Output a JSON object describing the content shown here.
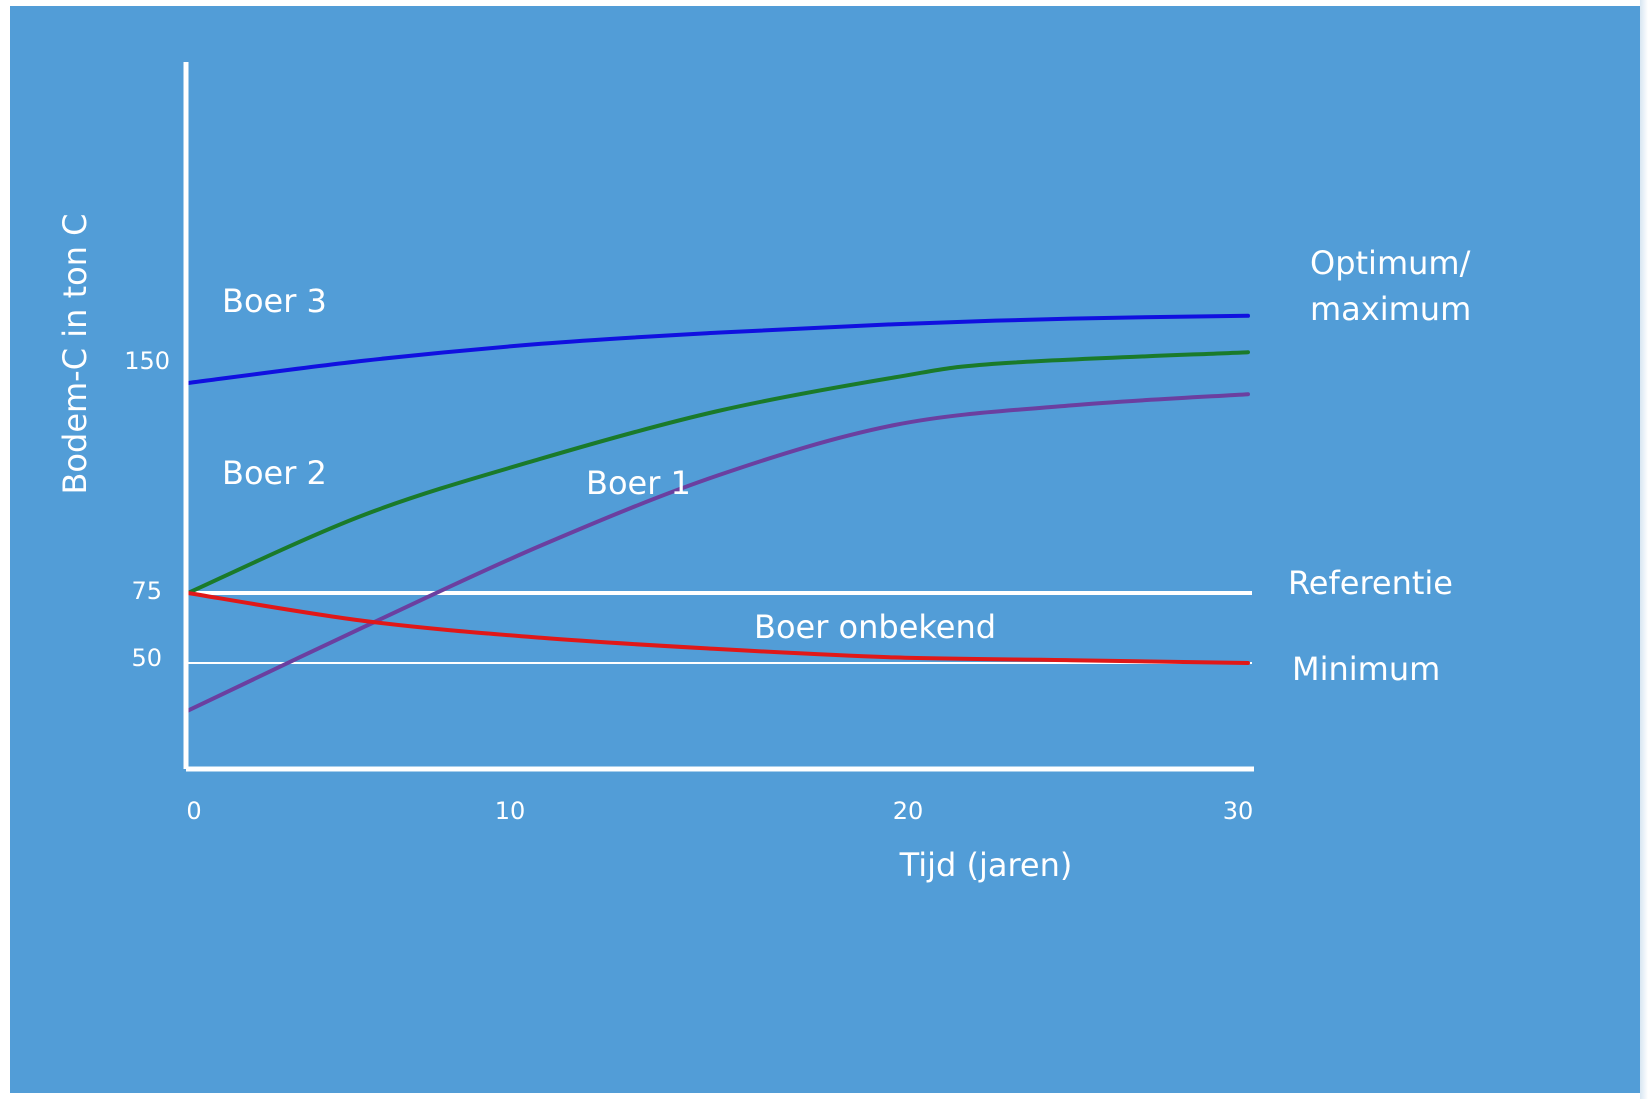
{
  "chart_data": {
    "type": "line",
    "xlabel": "Tijd (jaren)",
    "ylabel": "Bodem-C in ton C",
    "x_ticks": [
      "0",
      "10",
      "20",
      "30"
    ],
    "y_ticks": [
      "50",
      "75",
      "150"
    ],
    "xlim": [
      0,
      30
    ],
    "grid": false,
    "series": [
      {
        "name": "Boer 3",
        "color": "#1010e0",
        "x": [
          0,
          5,
          10,
          15,
          20,
          25,
          30
        ],
        "y": [
          150,
          158,
          164,
          168,
          171,
          173,
          174
        ]
      },
      {
        "name": "Boer 2",
        "color": "#1a7a2a",
        "x": [
          0,
          5,
          10,
          15,
          20,
          23,
          30
        ],
        "y": [
          75,
          103,
          123,
          140,
          152,
          157,
          161
        ]
      },
      {
        "name": "Boer 1",
        "color": "#6b3fa0",
        "x": [
          0,
          5,
          10,
          15,
          20,
          25,
          30
        ],
        "y": [
          33,
          63,
          92,
          117,
          135,
          142,
          146
        ]
      },
      {
        "name": "Boer onbekend",
        "color": "#e01818",
        "x": [
          0,
          5,
          10,
          15,
          20,
          25,
          30
        ],
        "y": [
          75,
          65,
          59,
          55,
          52,
          51,
          50
        ]
      }
    ],
    "reference_lines": [
      {
        "name": "Referentie",
        "y": 75
      },
      {
        "name": "Minimum",
        "y": 50
      }
    ],
    "annotations": {
      "optimum_line1": "Optimum/",
      "optimum_line2": "maximum"
    }
  }
}
